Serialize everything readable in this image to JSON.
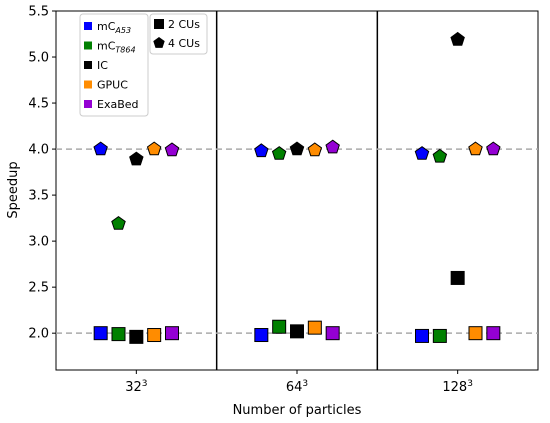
{
  "chart_data": {
    "type": "scatter",
    "xlabel": "Number of particles",
    "ylabel": "Speedup",
    "ylim": [
      1.6,
      5.5
    ],
    "yticks": [
      "2.0",
      "2.5",
      "3.0",
      "3.5",
      "4.0",
      "4.5",
      "5.0",
      "5.5"
    ],
    "categories": [
      {
        "base": "32",
        "exp": "3"
      },
      {
        "base": "64",
        "exp": "3"
      },
      {
        "base": "128",
        "exp": "3"
      }
    ],
    "reference_lines": [
      2.0,
      4.0
    ],
    "grid": false,
    "series": [
      {
        "name_main": "mC",
        "name_sub": "A53",
        "color": "#0000ff",
        "cu2": [
          2.0,
          1.98,
          1.97
        ],
        "cu4": [
          4.0,
          3.98,
          3.95
        ]
      },
      {
        "name_main": "mC",
        "name_sub": "T864",
        "color": "#008000",
        "cu2": [
          1.99,
          2.07,
          1.97
        ],
        "cu4": [
          3.19,
          3.95,
          3.92
        ]
      },
      {
        "name_main": "IC",
        "name_sub": "",
        "color": "#000000",
        "cu2": [
          1.96,
          2.02,
          2.6
        ],
        "cu4": [
          3.89,
          4.0,
          5.19
        ]
      },
      {
        "name_main": "GPUC",
        "name_sub": "",
        "color": "#ff8c00",
        "cu2": [
          1.98,
          2.06,
          2.0
        ],
        "cu4": [
          4.0,
          3.99,
          4.0
        ]
      },
      {
        "name_main": "ExaBed",
        "name_sub": "",
        "color": "#9400d3",
        "cu2": [
          2.0,
          2.0,
          2.0
        ],
        "cu4": [
          3.99,
          4.02,
          4.0
        ]
      }
    ],
    "marker_legend": [
      {
        "label": "2 CUs",
        "shape": "square"
      },
      {
        "label": "4 CUs",
        "shape": "pentagon"
      }
    ],
    "legend_position": "top-left"
  }
}
